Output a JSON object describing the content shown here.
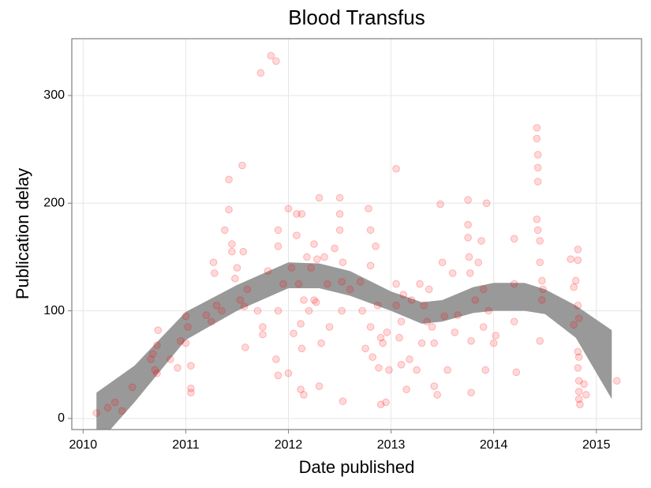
{
  "chart_data": {
    "type": "scatter",
    "title": "Blood Transfus",
    "x_label": "Date published",
    "y_label": "Publication delay",
    "xlim": [
      2009.89,
      2015.44
    ],
    "ylim": [
      -10.3,
      352.8
    ],
    "xticks": [
      2010,
      2011,
      2012,
      2013,
      2014,
      2015
    ],
    "yticks": [
      0,
      100,
      200,
      300
    ],
    "grid": true,
    "color": "#ff0000",
    "x": [
      2010.13,
      2010.24,
      2010.31,
      2010.38,
      2010.48,
      2010.66,
      2010.68,
      2010.7,
      2010.72,
      2010.73,
      2010.72,
      2010.85,
      2010.92,
      2010.95,
      2011.0,
      2011.02,
      2011.05,
      2011.05,
      2011.05,
      2011.0,
      2011.2,
      2011.25,
      2011.27,
      2011.28,
      2011.3,
      2011.35,
      2011.38,
      2011.42,
      2011.42,
      2011.45,
      2011.45,
      2011.48,
      2011.5,
      2011.53,
      2011.55,
      2011.56,
      2011.57,
      2011.58,
      2011.6,
      2011.7,
      2011.75,
      2011.75,
      2011.73,
      2011.8,
      2011.83,
      2011.88,
      2011.9,
      2011.9,
      2011.9,
      2011.88,
      2011.9,
      2011.95,
      2012.0,
      2012.0,
      2012.03,
      2012.05,
      2012.08,
      2012.08,
      2012.1,
      2012.12,
      2012.13,
      2012.13,
      2012.12,
      2012.15,
      2012.15,
      2012.18,
      2012.2,
      2012.22,
      2012.25,
      2012.25,
      2012.27,
      2012.28,
      2012.3,
      2012.3,
      2012.32,
      2012.35,
      2012.38,
      2012.4,
      2012.45,
      2012.5,
      2012.5,
      2012.5,
      2012.52,
      2012.53,
      2012.52,
      2012.53,
      2012.6,
      2012.7,
      2012.72,
      2012.75,
      2012.78,
      2012.8,
      2012.8,
      2012.8,
      2012.82,
      2012.85,
      2012.87,
      2012.88,
      2012.9,
      2012.92,
      2012.9,
      2012.95,
      2012.96,
      2012.98,
      2013.05,
      2013.05,
      2013.05,
      2013.08,
      2013.1,
      2013.1,
      2013.12,
      2013.15,
      2013.18,
      2013.2,
      2013.25,
      2013.28,
      2013.3,
      2013.32,
      2013.35,
      2013.37,
      2013.4,
      2013.42,
      2013.42,
      2013.45,
      2013.48,
      2013.5,
      2013.52,
      2013.55,
      2013.6,
      2013.62,
      2013.65,
      2013.75,
      2013.75,
      2013.75,
      2013.76,
      2013.77,
      2013.78,
      2013.78,
      2013.82,
      2013.85,
      2013.88,
      2013.9,
      2013.9,
      2013.92,
      2013.93,
      2013.95,
      2014.0,
      2014.02,
      2014.2,
      2014.2,
      2014.2,
      2014.22,
      2014.42,
      2014.42,
      2014.43,
      2014.43,
      2014.43,
      2014.42,
      2014.43,
      2014.45,
      2014.45,
      2014.47,
      2014.48,
      2014.45,
      2014.47,
      2014.75,
      2014.78,
      2014.78,
      2014.82,
      2014.82,
      2014.8,
      2014.82,
      2014.83,
      2014.82,
      2014.83,
      2014.82,
      2014.83,
      2014.83,
      2014.83,
      2014.84,
      2014.88,
      2014.9,
      2015.2
    ],
    "values": [
      5,
      10,
      15,
      7,
      29,
      55,
      60,
      45,
      42,
      82,
      68,
      55,
      47,
      72,
      95,
      85,
      28,
      24,
      49,
      70,
      96,
      90,
      145,
      135,
      105,
      100,
      175,
      222,
      194,
      162,
      155,
      130,
      140,
      110,
      235,
      155,
      104,
      66,
      120,
      100,
      85,
      78,
      321,
      137,
      337,
      332,
      175,
      160,
      100,
      55,
      40,
      125,
      195,
      42,
      140,
      79,
      190,
      170,
      125,
      88,
      190,
      65,
      27,
      22,
      110,
      150,
      100,
      140,
      162,
      110,
      108,
      148,
      205,
      30,
      70,
      150,
      125,
      85,
      158,
      205,
      190,
      175,
      127,
      145,
      100,
      16,
      120,
      127,
      100,
      65,
      195,
      175,
      142,
      85,
      57,
      160,
      105,
      47,
      75,
      70,
      13,
      15,
      80,
      45,
      232,
      125,
      105,
      75,
      50,
      90,
      115,
      27,
      55,
      110,
      45,
      125,
      70,
      105,
      90,
      120,
      85,
      70,
      30,
      22,
      199,
      145,
      95,
      45,
      135,
      80,
      96,
      203,
      180,
      168,
      150,
      135,
      72,
      24,
      110,
      145,
      165,
      120,
      85,
      45,
      200,
      100,
      70,
      77,
      167,
      125,
      90,
      43,
      270,
      260,
      245,
      233,
      220,
      185,
      175,
      165,
      145,
      128,
      120,
      72,
      110,
      148,
      122,
      87,
      157,
      147,
      128,
      105,
      93,
      62,
      57,
      47,
      35,
      25,
      18,
      13,
      32,
      22,
      35
    ],
    "smooth": {
      "color": "#999999",
      "x": [
        2010.13,
        2010.5,
        2011.0,
        2011.5,
        2012.0,
        2012.3,
        2012.6,
        2013.0,
        2013.3,
        2013.5,
        2013.8,
        2014.0,
        2014.3,
        2014.5,
        2014.8,
        2015.15
      ],
      "lower": [
        -25,
        15,
        73,
        100,
        121,
        121,
        114,
        100,
        88,
        90,
        98,
        100,
        100,
        97,
        75,
        18
      ],
      "upper": [
        24,
        49,
        99,
        124,
        145,
        144,
        137,
        118,
        108,
        110,
        122,
        126,
        126,
        120,
        105,
        82
      ]
    }
  }
}
